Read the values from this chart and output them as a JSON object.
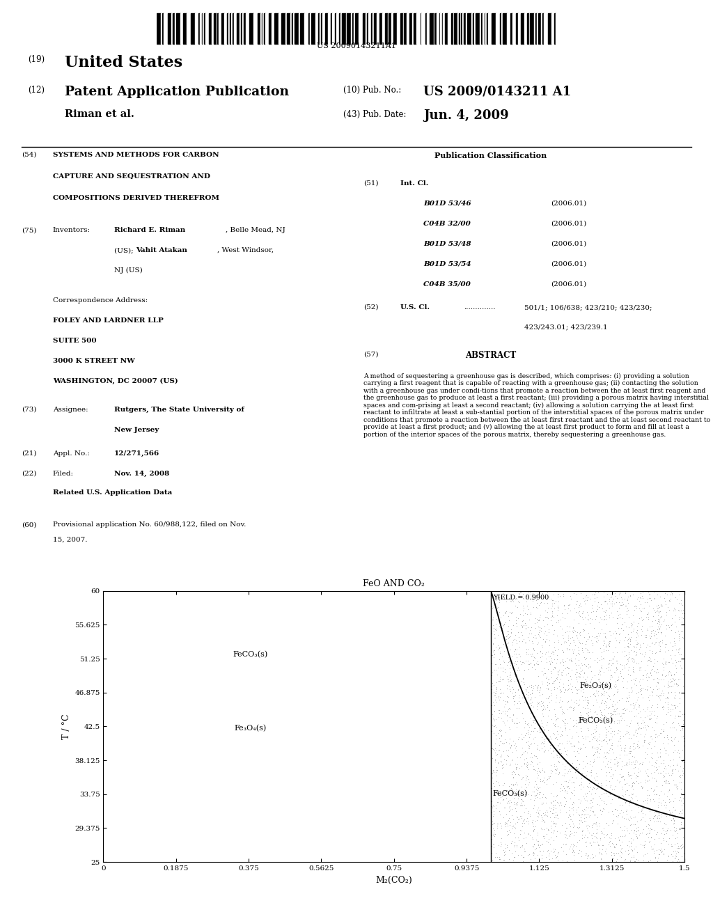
{
  "title": "FeO AND CO₂",
  "xlabel": "M₂(CO₂)",
  "ylabel": "T / °C",
  "xlim": [
    0.0,
    1.5
  ],
  "ylim": [
    25.0,
    60.0
  ],
  "xticks": [
    0.0,
    0.1875,
    0.375,
    0.5625,
    0.75,
    0.9375,
    1.125,
    1.3125,
    1.5
  ],
  "yticks": [
    25.0,
    29.375,
    33.75,
    38.125,
    42.5,
    46.875,
    51.25,
    55.625,
    60.0
  ],
  "vertical_line_x": 1.0,
  "yield_label": "YIELD = 0.9900",
  "label_FeCO3_left": "FeCO₃(s)",
  "label_Fe3O4": "Fe₃O₄(s)",
  "label_Fe2O3_right": "Fe₂O₃(s)",
  "label_FeCO3_right_upper": "FeCO₃(s)",
  "label_FeCO3_right_lower": "FeCO₃(s)",
  "patent_number": "US 20090143211A1",
  "author": "Riman et al.",
  "pub_date_value": "Jun. 4, 2009",
  "background_color": "#ffffff",
  "curve_color": "#000000",
  "int_cl": [
    [
      "B01D 53/46",
      "(2006.01)"
    ],
    [
      "C04B 32/00",
      "(2006.01)"
    ],
    [
      "B01D 53/48",
      "(2006.01)"
    ],
    [
      "B01D 53/54",
      "(2006.01)"
    ],
    [
      "C04B 35/00",
      "(2006.01)"
    ]
  ],
  "abstract": "A method of sequestering a greenhouse gas is described, which comprises: (i) providing a solution carrying a first reagent that is capable of reacting with a greenhouse gas; (ii) contacting the solution with a greenhouse gas under condi-tions that promote a reaction between the at least first reagent and the greenhouse gas to produce at least a first reactant; (iii) providing a porous matrix having interstitial spaces and com-prising at least a second reactant; (iv) allowing a solution carrying the at least first reactant to infiltrate at least a sub-stantial portion of the interstitial spaces of the porous matrix under conditions that promote a reaction between the at least first reactant and the at least second reactant to provide at least a first product; and (v) allowing the at least first product to form and fill at least a portion of the interior spaces of the porous matrix, thereby sequestering a greenhouse gas."
}
